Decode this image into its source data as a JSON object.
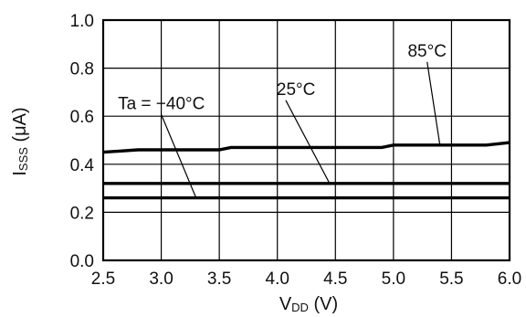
{
  "chart_data": {
    "type": "line",
    "x_ticks": [
      "2.5",
      "3.0",
      "3.5",
      "4.0",
      "4.5",
      "5.0",
      "5.5",
      "6.0"
    ],
    "y_ticks": [
      "0.0",
      "0.2",
      "0.4",
      "0.6",
      "0.8",
      "1.0"
    ],
    "xlim": [
      2.5,
      6.0
    ],
    "ylim": [
      0.0,
      1.0
    ],
    "xlabel": {
      "main": "V",
      "sub": "DD",
      "unit": " (V)"
    },
    "ylabel": {
      "main": "I",
      "sub": "SSS",
      "unit": " (μA)"
    },
    "grid": true,
    "series": [
      {
        "name": "85°C",
        "x": [
          2.5,
          2.8,
          3.0,
          3.5,
          3.6,
          4.0,
          4.3,
          4.5,
          4.9,
          5.0,
          5.5,
          5.8,
          6.0
        ],
        "y": [
          0.45,
          0.46,
          0.46,
          0.46,
          0.47,
          0.47,
          0.47,
          0.47,
          0.47,
          0.48,
          0.48,
          0.48,
          0.49
        ],
        "label_x": 5.4,
        "label_y": 0.48
      },
      {
        "name": "25°C",
        "x": [
          2.5,
          6.0
        ],
        "y": [
          0.32,
          0.32
        ],
        "label_x": 4.45,
        "label_y": 0.32
      },
      {
        "name": "Ta = −40°C",
        "x": [
          2.5,
          6.0
        ],
        "y": [
          0.26,
          0.26
        ],
        "label_x": 3.3,
        "label_y": 0.26
      }
    ]
  }
}
